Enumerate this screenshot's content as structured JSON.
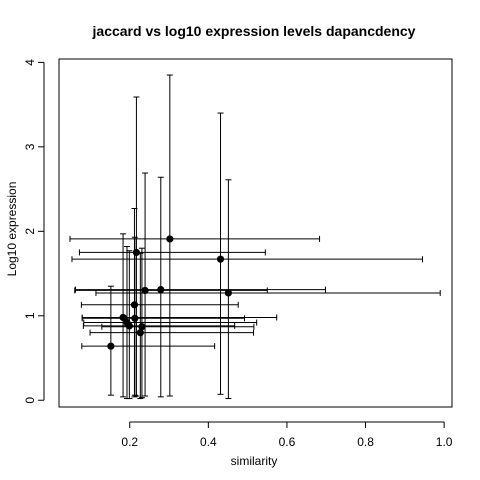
{
  "chart_data": {
    "type": "scatter",
    "title": "jaccard vs log10 expression levels dapancdency",
    "xlabel": "similarity",
    "ylabel": "Log10 expression",
    "xlim": [
      0.02,
      1.02
    ],
    "ylim": [
      -0.08,
      4.04
    ],
    "x_ticks": [
      0.2,
      0.4,
      0.6,
      0.8,
      1.0
    ],
    "x_tick_labels": [
      "0.2",
      "0.4",
      "0.6",
      "0.8",
      "1.0"
    ],
    "y_ticks": [
      0,
      1,
      2,
      3,
      4
    ],
    "y_tick_labels": [
      "0",
      "1",
      "2",
      "3",
      "4"
    ],
    "grid": false,
    "legend": "none",
    "colors": {
      "points": "#000000",
      "error_bars": "#000000",
      "axes": "#000000"
    },
    "points": [
      {
        "x": 0.302,
        "y": 1.91,
        "x_low": 0.048,
        "x_high": 0.683,
        "y_low": 0.05,
        "y_high": 3.85
      },
      {
        "x": 0.217,
        "y": 1.75,
        "x_low": 0.072,
        "x_high": 0.545,
        "y_low": 0.05,
        "y_high": 3.59
      },
      {
        "x": 0.431,
        "y": 1.67,
        "x_low": 0.053,
        "x_high": 0.945,
        "y_low": 0.07,
        "y_high": 3.4
      },
      {
        "x": 0.239,
        "y": 1.3,
        "x_low": 0.06,
        "x_high": 0.55,
        "y_low": 0.05,
        "y_high": 2.69
      },
      {
        "x": 0.279,
        "y": 1.31,
        "x_low": 0.062,
        "x_high": 0.698,
        "y_low": 0.04,
        "y_high": 2.64
      },
      {
        "x": 0.451,
        "y": 1.27,
        "x_low": 0.114,
        "x_high": 0.99,
        "y_low": 0.02,
        "y_high": 2.61
      },
      {
        "x": 0.212,
        "y": 1.13,
        "x_low": 0.077,
        "x_high": 0.476,
        "y_low": 0.04,
        "y_high": 2.27
      },
      {
        "x": 0.183,
        "y": 0.98,
        "x_low": 0.079,
        "x_high": 0.574,
        "y_low": 0.04,
        "y_high": 1.97
      },
      {
        "x": 0.213,
        "y": 0.97,
        "x_low": 0.079,
        "x_high": 0.492,
        "y_low": 0.06,
        "y_high": 1.93
      },
      {
        "x": 0.193,
        "y": 0.92,
        "x_low": 0.083,
        "x_high": 0.523,
        "y_low": 0.02,
        "y_high": 1.82
      },
      {
        "x": 0.231,
        "y": 0.87,
        "x_low": 0.129,
        "x_high": 0.516,
        "y_low": 0.03,
        "y_high": 1.8
      },
      {
        "x": 0.199,
        "y": 0.88,
        "x_low": 0.082,
        "x_high": 0.467,
        "y_low": 0.02,
        "y_high": 1.77
      },
      {
        "x": 0.227,
        "y": 0.8,
        "x_low": 0.099,
        "x_high": 0.515,
        "y_low": 0.02,
        "y_high": 1.74
      },
      {
        "x": 0.152,
        "y": 0.64,
        "x_low": 0.078,
        "x_high": 0.416,
        "y_low": 0.06,
        "y_high": 1.35
      }
    ]
  }
}
